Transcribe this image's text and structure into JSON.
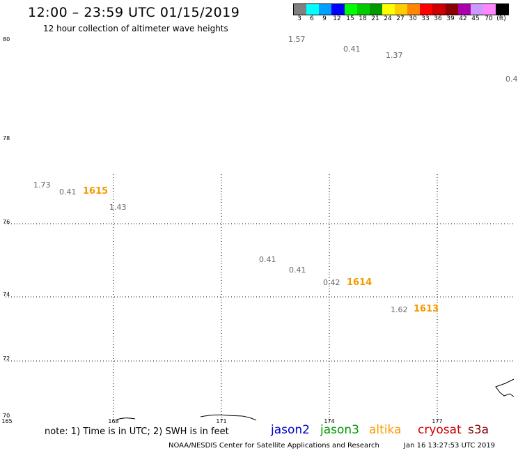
{
  "header": {
    "title": "12:00 – 23:59 UTC 01/15/2019",
    "subtitle": "12 hour collection of altimeter wave heights"
  },
  "legend": {
    "colors": [
      "#808080",
      "#00ffff",
      "#00a0ff",
      "#0000ff",
      "#00ff00",
      "#00cc00",
      "#009900",
      "#ffff00",
      "#ffcc00",
      "#ff8800",
      "#ff0000",
      "#cc0000",
      "#880000",
      "#aa00aa",
      "#cc99ff",
      "#ff88ff",
      "#000000"
    ],
    "labels": [
      "3",
      "6",
      "9",
      "12",
      "15",
      "18",
      "21",
      "24",
      "27",
      "30",
      "33",
      "36",
      "39",
      "42",
      "45",
      "70",
      "(ft)"
    ]
  },
  "map": {
    "lat_labels": [
      "80",
      "78",
      "76",
      "74",
      "72",
      "70"
    ],
    "lon_labels": [
      "165",
      "168",
      "171",
      "174",
      "177"
    ],
    "swh": [
      "1.57",
      "0.41",
      "1.37",
      "0.4",
      "1.73",
      "0.41",
      "1.43",
      "0.41",
      "0.41",
      "0.42",
      "1.62"
    ],
    "pass_times": [
      "1615",
      "1614",
      "1613"
    ]
  },
  "footer": {
    "note": "note: 1) Time is in UTC; 2) SWH is in feet",
    "satellites": [
      {
        "name": "jason2",
        "color": "#0000cc"
      },
      {
        "name": "jason3",
        "color": "#009900"
      },
      {
        "name": "altika",
        "color": "#ff9900"
      },
      {
        "name": "cryosat",
        "color": "#cc0000"
      },
      {
        "name": "s3a",
        "color": "#880000"
      }
    ],
    "credit": "NOAA/NESDIS Center for Satellite Applications and Research",
    "timestamp": "Jan 16 13:27:53 UTC 2019"
  }
}
